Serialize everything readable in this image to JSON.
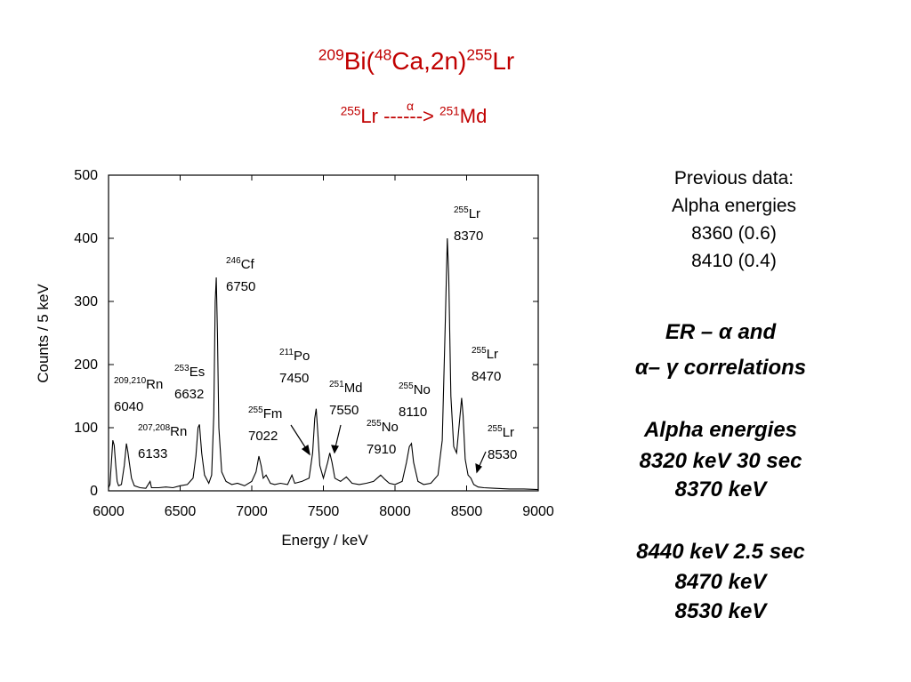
{
  "chart_data": {
    "type": "line",
    "title": [
      [
        "209",
        "Bi("
      ],
      [
        "48",
        "Ca,2n)"
      ],
      [
        "255",
        "Lr"
      ]
    ],
    "subtitle": [
      [
        "255",
        "Lr ------> "
      ],
      [
        "251",
        "Md"
      ]
    ],
    "subtitle_arrow_label": "α",
    "x_label": "Energy / keV",
    "y_label": "Counts / 5 keV",
    "xlim": [
      6000,
      9000
    ],
    "ylim": [
      0,
      500
    ],
    "xticks": [
      6000,
      6500,
      7000,
      7500,
      8000,
      8500,
      9000
    ],
    "yticks": [
      0,
      100,
      200,
      300,
      400,
      500
    ],
    "color": "#000000",
    "x": [
      6000,
      6010,
      6020,
      6030,
      6040,
      6050,
      6060,
      6070,
      6090,
      6110,
      6125,
      6135,
      6145,
      6160,
      6180,
      6220,
      6260,
      6290,
      6300,
      6350,
      6400,
      6450,
      6500,
      6550,
      6590,
      6610,
      6625,
      6635,
      6650,
      6670,
      6700,
      6720,
      6735,
      6745,
      6752,
      6760,
      6770,
      6790,
      6820,
      6860,
      6900,
      6950,
      7000,
      7030,
      7050,
      7065,
      7080,
      7100,
      7130,
      7160,
      7200,
      7250,
      7280,
      7300,
      7350,
      7400,
      7425,
      7440,
      7450,
      7460,
      7475,
      7500,
      7530,
      7545,
      7560,
      7580,
      7620,
      7660,
      7700,
      7750,
      7800,
      7850,
      7900,
      7930,
      7960,
      8000,
      8050,
      8080,
      8100,
      8115,
      8130,
      8160,
      8200,
      8250,
      8300,
      8330,
      8350,
      8365,
      8375,
      8390,
      8410,
      8430,
      8450,
      8465,
      8475,
      8490,
      8510,
      8530,
      8550,
      8580,
      8620,
      8700,
      8800,
      8900,
      9000
    ],
    "values": [
      5,
      10,
      45,
      80,
      72,
      40,
      15,
      8,
      10,
      40,
      75,
      62,
      45,
      20,
      8,
      5,
      4,
      15,
      5,
      5,
      6,
      5,
      8,
      10,
      20,
      55,
      100,
      105,
      60,
      25,
      12,
      25,
      120,
      300,
      338,
      250,
      100,
      30,
      15,
      10,
      12,
      8,
      15,
      30,
      55,
      40,
      20,
      25,
      12,
      10,
      12,
      10,
      25,
      12,
      15,
      20,
      60,
      115,
      130,
      95,
      40,
      20,
      45,
      60,
      45,
      20,
      15,
      22,
      12,
      10,
      12,
      15,
      25,
      18,
      12,
      10,
      15,
      45,
      70,
      75,
      45,
      15,
      10,
      12,
      25,
      80,
      260,
      400,
      340,
      150,
      70,
      60,
      110,
      147,
      120,
      50,
      25,
      20,
      10,
      6,
      5,
      4,
      3,
      3,
      2
    ],
    "annotations": [
      {
        "mass": "209,210",
        "element": "Rn",
        "energy": "6040"
      },
      {
        "mass": "207,208",
        "element": "Rn",
        "energy": "6133"
      },
      {
        "mass": "253",
        "element": "Es",
        "energy": "6632"
      },
      {
        "mass": "246",
        "element": "Cf",
        "energy": "6750"
      },
      {
        "mass": "255",
        "element": "Fm",
        "energy": "7022"
      },
      {
        "mass": "211",
        "element": "Po",
        "energy": "7450"
      },
      {
        "mass": "251",
        "element": "Md",
        "energy": "7550"
      },
      {
        "mass": "255",
        "element": "No",
        "energy": "7910"
      },
      {
        "mass": "255",
        "element": "No",
        "energy": "8110"
      },
      {
        "mass": "255",
        "element": "Lr",
        "energy": "8370"
      },
      {
        "mass": "255",
        "element": "Lr",
        "energy": "8470"
      },
      {
        "mass": "255",
        "element": "Lr",
        "energy": "8530"
      }
    ]
  },
  "side_text": {
    "previous": [
      "Previous data:",
      "Alpha energies",
      "8360 (0.6)",
      "8410 (0.4)"
    ],
    "correlations": [
      [
        "ER – ",
        "α",
        " and"
      ],
      [
        "α",
        "– ",
        "γ",
        "  correlations"
      ]
    ],
    "energies_1": [
      "Alpha energies",
      "8320 keV  30 sec",
      "8370 keV"
    ],
    "energies_2": [
      "8440 keV   2.5 sec",
      "8470 keV",
      "8530 keV"
    ]
  }
}
